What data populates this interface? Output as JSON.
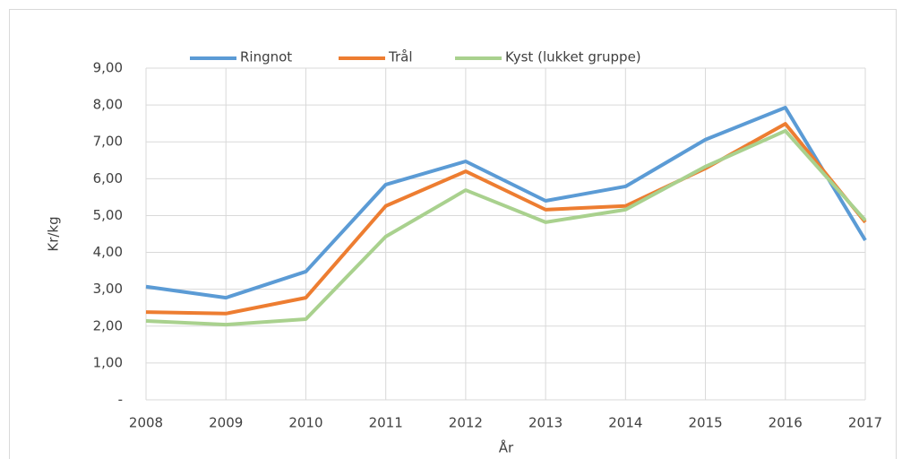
{
  "chart_data": {
    "type": "line",
    "x": [
      2008,
      2009,
      2010,
      2011,
      2012,
      2013,
      2014,
      2015,
      2016,
      2017
    ],
    "series": [
      {
        "name": "Ringnot",
        "color": "#5b9bd5",
        "values": [
          3.07,
          2.77,
          3.48,
          5.84,
          6.47,
          5.4,
          5.79,
          7.06,
          7.93,
          4.33
        ]
      },
      {
        "name": "Trål",
        "color": "#ed7d31",
        "values": [
          2.38,
          2.34,
          2.77,
          5.26,
          6.2,
          5.16,
          5.26,
          6.28,
          7.49,
          4.82
        ]
      },
      {
        "name": "Kyst (lukket gruppe)",
        "color": "#a9d18e",
        "values": [
          2.14,
          2.04,
          2.19,
          4.43,
          5.69,
          4.82,
          5.16,
          6.33,
          7.3,
          4.87
        ]
      }
    ],
    "xlabel": "År",
    "ylabel": "Kr/kg",
    "xlim": [
      2008,
      2017
    ],
    "xticks": [
      2008,
      2009,
      2010,
      2011,
      2012,
      2013,
      2014,
      2015,
      2016,
      2017
    ],
    "ylim": [
      0,
      9
    ],
    "yticks": [
      {
        "value": 0,
        "label": "-"
      },
      {
        "value": 1,
        "label": "1,00"
      },
      {
        "value": 2,
        "label": "2,00"
      },
      {
        "value": 3,
        "label": "3,00"
      },
      {
        "value": 4,
        "label": "4,00"
      },
      {
        "value": 5,
        "label": "5,00"
      },
      {
        "value": 6,
        "label": "6,00"
      },
      {
        "value": 7,
        "label": "7,00"
      },
      {
        "value": 8,
        "label": "8,00"
      },
      {
        "value": 9,
        "label": "9,00"
      }
    ],
    "grid": true,
    "legend": "top"
  }
}
